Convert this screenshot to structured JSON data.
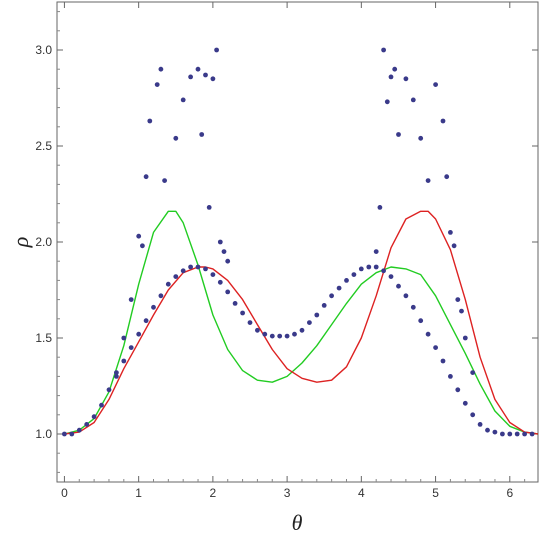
{
  "chart_data": {
    "type": "scatter",
    "title": "",
    "xlabel": "θ",
    "ylabel": "ρ",
    "xlim": [
      -0.1,
      6.38
    ],
    "ylim": [
      0.75,
      3.25
    ],
    "x_ticks": [
      "0",
      "1",
      "2",
      "3",
      "4",
      "5",
      "6"
    ],
    "y_ticks": [
      "1.0",
      "1.5",
      "2.0",
      "2.5",
      "3.0"
    ],
    "grid": false,
    "legend": "none",
    "colors": {
      "green_curve": "#22cc22",
      "red_curve": "#dd2222",
      "points": "#3a3a8a",
      "frame": "#666666"
    },
    "series": [
      {
        "kind": "line",
        "color": "#22cc22",
        "x": [
          0,
          0.2,
          0.4,
          0.6,
          0.8,
          1.0,
          1.2,
          1.4,
          1.5,
          1.6,
          1.8,
          2.0,
          2.2,
          2.4,
          2.6,
          2.8,
          3.0,
          3.2,
          3.4,
          3.6,
          3.8,
          4.0,
          4.2,
          4.4,
          4.6,
          4.8,
          5.0,
          5.2,
          5.4,
          5.6,
          5.8,
          6.0,
          6.2,
          6.38
        ],
        "y": [
          1.0,
          1.02,
          1.08,
          1.22,
          1.46,
          1.78,
          2.05,
          2.16,
          2.16,
          2.1,
          1.88,
          1.62,
          1.44,
          1.33,
          1.28,
          1.27,
          1.3,
          1.37,
          1.46,
          1.57,
          1.68,
          1.78,
          1.84,
          1.87,
          1.86,
          1.83,
          1.72,
          1.57,
          1.42,
          1.26,
          1.12,
          1.04,
          1.01,
          1.0
        ]
      },
      {
        "kind": "line",
        "color": "#dd2222",
        "x": [
          0,
          0.2,
          0.4,
          0.6,
          0.8,
          1.0,
          1.2,
          1.4,
          1.6,
          1.8,
          1.9,
          2.0,
          2.2,
          2.4,
          2.6,
          2.8,
          3.0,
          3.2,
          3.4,
          3.6,
          3.8,
          4.0,
          4.2,
          4.4,
          4.6,
          4.8,
          4.9,
          5.0,
          5.2,
          5.4,
          5.6,
          5.8,
          6.0,
          6.2,
          6.38
        ],
        "y": [
          1.0,
          1.01,
          1.06,
          1.18,
          1.34,
          1.48,
          1.62,
          1.75,
          1.84,
          1.87,
          1.87,
          1.86,
          1.8,
          1.7,
          1.57,
          1.44,
          1.34,
          1.29,
          1.27,
          1.28,
          1.35,
          1.5,
          1.72,
          1.97,
          2.12,
          2.16,
          2.16,
          2.12,
          1.96,
          1.7,
          1.4,
          1.18,
          1.06,
          1.01,
          1.0
        ]
      },
      {
        "kind": "points",
        "color": "#3a3a8a",
        "x": [
          0,
          0.1,
          0.2,
          0.3,
          0.4,
          0.5,
          0.6,
          0.7,
          0.8,
          0.9,
          1.0,
          1.1,
          1.2,
          1.3,
          1.4,
          1.5,
          1.6,
          1.7,
          1.8,
          1.9,
          2.0,
          2.1,
          2.2,
          2.3,
          2.4,
          2.5,
          2.6,
          2.7,
          2.8,
          2.9,
          3.0,
          3.1,
          3.2,
          3.3,
          3.4,
          3.5,
          3.6,
          3.7,
          3.8,
          3.9,
          4.0,
          4.1,
          4.2,
          4.3,
          4.4,
          4.5,
          4.6,
          4.7,
          4.8,
          4.9,
          5.0,
          5.1,
          5.2,
          5.3,
          5.4,
          5.5,
          5.6,
          5.7,
          5.8,
          5.9,
          6.0,
          6.1,
          6.2,
          6.3,
          0.7,
          0.8,
          0.9,
          1.0,
          1.05,
          1.1,
          1.15,
          1.25,
          1.3,
          1.35,
          1.5,
          1.6,
          1.7,
          1.8,
          1.85,
          1.9,
          1.95,
          2.0,
          2.05,
          2.1,
          2.15,
          2.2,
          4.2,
          4.25,
          4.3,
          4.35,
          4.4,
          4.45,
          4.5,
          4.6,
          4.7,
          4.8,
          4.9,
          5.0,
          5.1,
          5.15,
          5.2,
          5.25,
          5.3,
          5.35,
          5.4,
          5.5
        ],
        "y": [
          1.0,
          1.0,
          1.02,
          1.05,
          1.09,
          1.15,
          1.23,
          1.3,
          1.38,
          1.45,
          1.52,
          1.59,
          1.66,
          1.72,
          1.78,
          1.82,
          1.85,
          1.87,
          1.87,
          1.86,
          1.83,
          1.79,
          1.74,
          1.68,
          1.63,
          1.58,
          1.54,
          1.52,
          1.51,
          1.51,
          1.51,
          1.52,
          1.54,
          1.58,
          1.62,
          1.67,
          1.72,
          1.76,
          1.8,
          1.83,
          1.86,
          1.87,
          1.87,
          1.85,
          1.82,
          1.77,
          1.72,
          1.66,
          1.59,
          1.52,
          1.45,
          1.38,
          1.3,
          1.23,
          1.16,
          1.1,
          1.05,
          1.02,
          1.01,
          1.0,
          1.0,
          1.0,
          1.0,
          1.0,
          1.32,
          1.5,
          1.7,
          2.03,
          1.98,
          2.34,
          2.63,
          2.82,
          2.9,
          2.32,
          2.54,
          2.74,
          2.86,
          2.9,
          2.56,
          2.87,
          2.18,
          2.85,
          3.0,
          2.0,
          1.95,
          1.9,
          1.95,
          2.18,
          3.0,
          2.73,
          2.86,
          2.9,
          2.56,
          2.85,
          2.74,
          2.54,
          2.32,
          2.82,
          2.63,
          2.34,
          2.05,
          1.98,
          1.7,
          1.64,
          1.5,
          1.32
        ]
      }
    ]
  }
}
